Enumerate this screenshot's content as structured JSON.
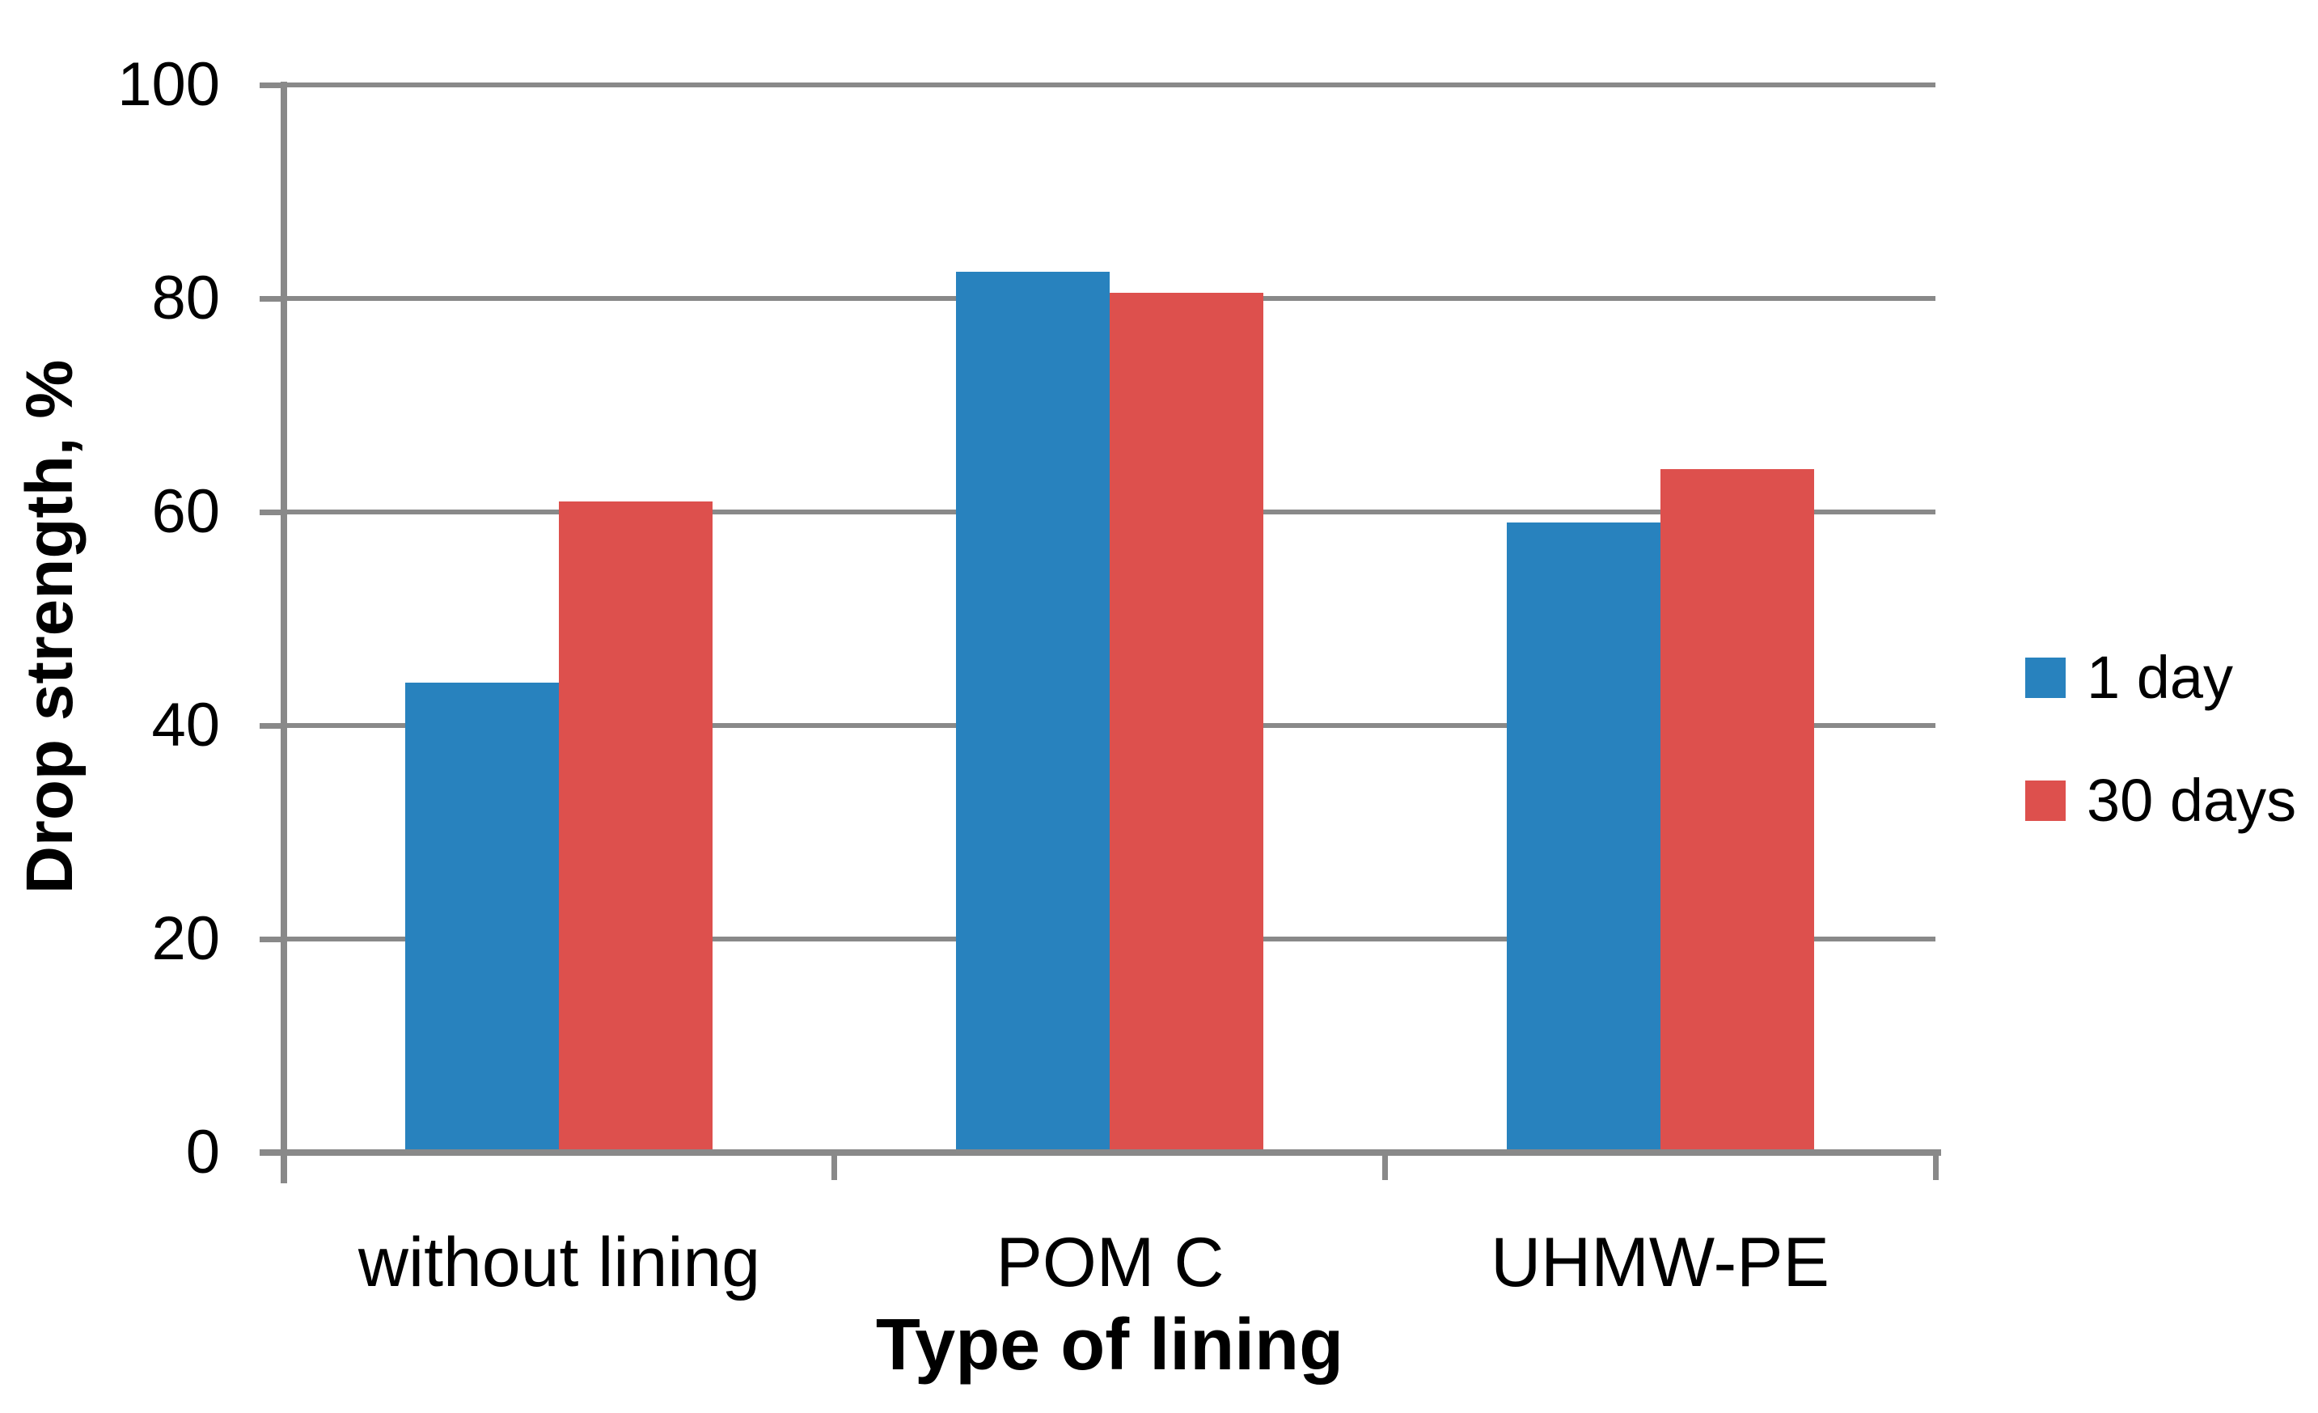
{
  "chart_data": {
    "type": "bar",
    "title": "",
    "categories": [
      "without lining",
      "POM C",
      "UHMW-PE"
    ],
    "series": [
      {
        "name": "1 day",
        "color": "#2882be",
        "values": [
          44,
          82.5,
          59
        ]
      },
      {
        "name": "30 days",
        "color": "#dd504d",
        "values": [
          61,
          80.5,
          64
        ]
      }
    ],
    "xlabel": "Type of lining",
    "ylabel": "Drop strength, %",
    "ylim": [
      0,
      100
    ],
    "yticks": [
      0,
      20,
      40,
      60,
      80,
      100
    ],
    "grid": "horizontal",
    "legend_position": "right",
    "axis_color": "#898989",
    "gridline_color": "#898989",
    "text_color": "#000000",
    "background": "#ffffff"
  }
}
